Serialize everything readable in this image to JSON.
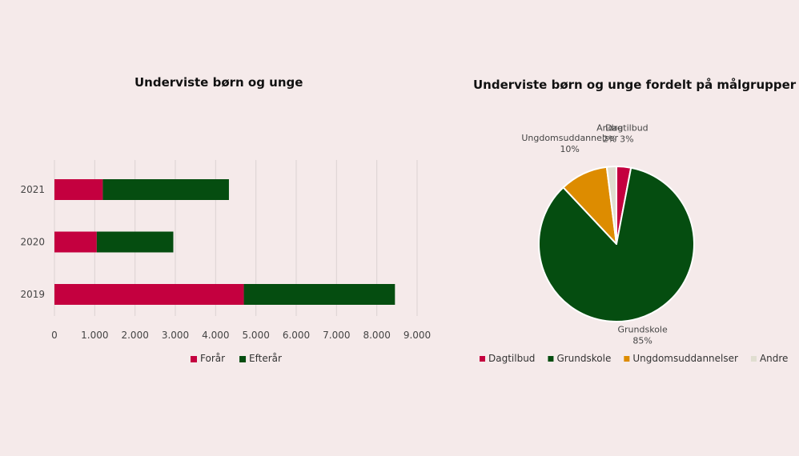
{
  "chart_data": [
    {
      "type": "bar",
      "orientation": "horizontal",
      "stacked": true,
      "title": "Underviste børn og unge",
      "categories": [
        "2019",
        "2020",
        "2021"
      ],
      "series": [
        {
          "name": "Forår",
          "color": "#c4003f",
          "values": [
            4700,
            1050,
            1200
          ]
        },
        {
          "name": "Efterår",
          "color": "#054d10",
          "values": [
            3750,
            1900,
            3130
          ]
        }
      ],
      "xlim": [
        0,
        9000
      ],
      "xticks": [
        "0",
        "1.000",
        "2.000",
        "3.000",
        "4.000",
        "5.000",
        "6.000",
        "7.000",
        "8.000",
        "9.000"
      ],
      "grid": true,
      "legend": "bottom"
    },
    {
      "type": "pie",
      "title": "Underviste børn og unge fordelt på målgrupper",
      "slices": [
        {
          "name": "Dagtilbud",
          "value": 3,
          "label": "3%",
          "color": "#c4003f"
        },
        {
          "name": "Grundskole",
          "value": 85,
          "label": "85%",
          "color": "#054d10"
        },
        {
          "name": "Ungdomsuddannelser",
          "value": 10,
          "label": "10%",
          "color": "#dd8c00"
        },
        {
          "name": "Andre",
          "value": 2,
          "label": "2%",
          "color": "#e0ded0"
        }
      ],
      "legend": "bottom"
    }
  ]
}
